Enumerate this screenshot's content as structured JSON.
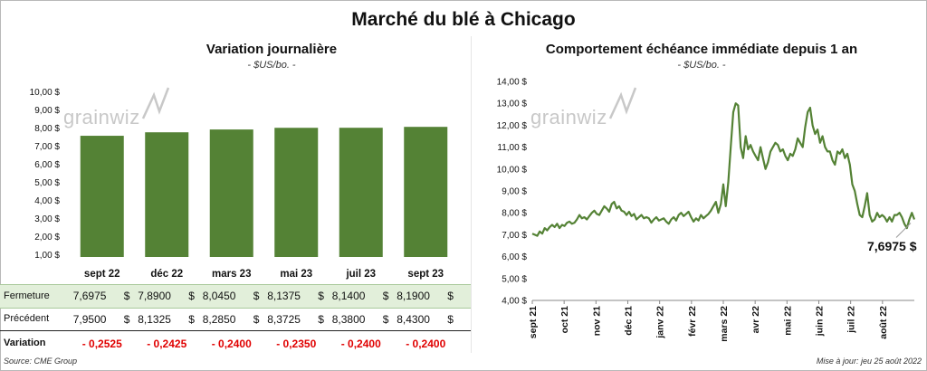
{
  "title": "Marché du blé à Chicago",
  "left_panel": {
    "title": "Variation journalière",
    "unit": "- $US/bo. -",
    "watermark": "grainwiz",
    "row_labels": {
      "close": "Fermeture",
      "previous": "Précédent",
      "change": "Variation"
    },
    "currency": "$",
    "closes": [
      "7,6975",
      "7,8900",
      "8,0450",
      "8,1375",
      "8,1400",
      "8,1900"
    ],
    "previous": [
      "7,9500",
      "8,1325",
      "8,2850",
      "8,3725",
      "8,3800",
      "8,4300"
    ],
    "changes": [
      "- 0,2525",
      "- 0,2425",
      "- 0,2400",
      "- 0,2350",
      "- 0,2400",
      "- 0,2400"
    ]
  },
  "right_panel": {
    "title": "Comportement échéance immédiate depuis 1 an",
    "unit": "- $US/bo. -",
    "watermark": "grainwiz",
    "last_value_label": "7,6975 $"
  },
  "footer": {
    "source": "Source: CME Group",
    "updated": "Mise à jour: jeu 25 août 2022"
  },
  "colors": {
    "bar": "#548235",
    "line": "#548235",
    "highlight_row": "#e2efda",
    "negative": "#e00000"
  },
  "chart_data": [
    {
      "type": "bar",
      "categories": [
        "sept 22",
        "déc 22",
        "mars 23",
        "mai 23",
        "juil 23",
        "sept 23"
      ],
      "values": [
        7.6975,
        7.89,
        8.045,
        8.1375,
        8.14,
        8.19
      ],
      "ylim": [
        1,
        10
      ],
      "yticks": [
        1,
        2,
        3,
        4,
        5,
        6,
        7,
        8,
        9,
        10
      ],
      "ytick_labels": [
        "1,00 $",
        "2,00 $",
        "3,00 $",
        "4,00 $",
        "5,00 $",
        "6,00 $",
        "7,00 $",
        "8,00 $",
        "9,00 $",
        "10,00 $"
      ],
      "grid": false
    },
    {
      "type": "line",
      "x_labels": [
        "sept 21",
        "oct 21",
        "nov 21",
        "déc 21",
        "janv 22",
        "févr 22",
        "mars 22",
        "avr 22",
        "mai 22",
        "juin 22",
        "juil 22",
        "août 22"
      ],
      "ylim": [
        4,
        14
      ],
      "yticks": [
        4,
        5,
        6,
        7,
        8,
        9,
        10,
        11,
        12,
        13,
        14
      ],
      "ytick_labels": [
        "4,00 $",
        "5,00 $",
        "6,00 $",
        "7,00 $",
        "8,00 $",
        "9,00 $",
        "10,00 $",
        "11,00 $",
        "12,00 $",
        "13,00 $",
        "14,00 $"
      ],
      "grid": false,
      "series": [
        {
          "values": [
            7.05,
            7.0,
            6.95,
            7.15,
            7.05,
            7.3,
            7.2,
            7.35,
            7.45,
            7.35,
            7.5,
            7.3,
            7.45,
            7.4,
            7.55,
            7.6,
            7.5,
            7.55,
            7.7,
            7.9,
            7.75,
            7.8,
            7.7,
            7.85,
            8.0,
            8.1,
            7.95,
            7.9,
            8.1,
            8.3,
            8.2,
            8.05,
            8.4,
            8.5,
            8.2,
            8.3,
            8.1,
            8.05,
            7.9,
            8.05,
            7.85,
            7.95,
            7.7,
            7.8,
            7.9,
            7.75,
            7.8,
            7.75,
            7.55,
            7.7,
            7.8,
            7.65,
            7.7,
            7.75,
            7.6,
            7.5,
            7.7,
            7.8,
            7.65,
            7.9,
            8.0,
            7.85,
            7.95,
            8.05,
            7.8,
            7.6,
            7.75,
            7.65,
            7.9,
            7.75,
            7.85,
            7.95,
            8.1,
            8.3,
            8.5,
            8.0,
            8.4,
            9.3,
            8.3,
            9.4,
            11.0,
            12.6,
            13.0,
            12.9,
            11.0,
            10.5,
            11.5,
            10.9,
            11.1,
            10.8,
            10.6,
            10.4,
            11.0,
            10.5,
            10.0,
            10.3,
            10.8,
            11.0,
            11.2,
            11.1,
            10.8,
            10.9,
            10.6,
            10.4,
            10.7,
            10.6,
            10.9,
            11.4,
            11.2,
            11.0,
            11.9,
            12.6,
            12.8,
            12.0,
            11.6,
            11.8,
            11.2,
            11.5,
            11.0,
            10.8,
            10.8,
            10.4,
            10.2,
            10.8,
            10.7,
            10.9,
            10.5,
            10.7,
            10.2,
            9.3,
            9.0,
            8.4,
            7.9,
            7.8,
            8.3,
            8.9,
            7.9,
            7.6,
            7.7,
            8.0,
            7.8,
            7.9,
            7.8,
            7.6,
            7.8,
            7.6,
            7.9,
            7.9,
            8.0,
            7.8,
            7.5,
            7.3,
            7.7,
            8.0,
            7.6975
          ]
        }
      ]
    }
  ]
}
